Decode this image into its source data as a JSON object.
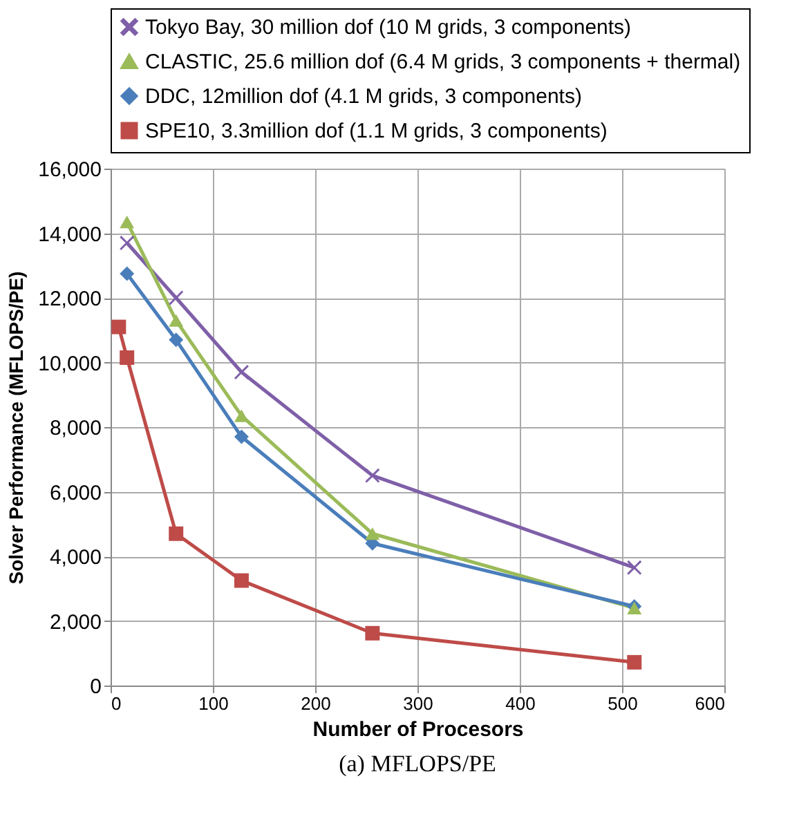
{
  "chart_data": {
    "type": "line",
    "xlabel": "Number of Procesors",
    "ylabel": "Solver Performance (MFLOPS/PE)",
    "annotations": [
      "(a) MFLOPS/PE"
    ],
    "xlim": [
      0,
      600
    ],
    "xticks": [
      0,
      100,
      200,
      300,
      400,
      500,
      600
    ],
    "ylim": [
      0,
      16000
    ],
    "yticks": [
      {
        "value": 0,
        "label": "0"
      },
      {
        "value": 2000,
        "label": "2,000"
      },
      {
        "value": 4000,
        "label": "4,000"
      },
      {
        "value": 6000,
        "label": "6,000"
      },
      {
        "value": 8000,
        "label": "8,000"
      },
      {
        "value": 10000,
        "label": "10,000"
      },
      {
        "value": 12000,
        "label": "12,000"
      },
      {
        "value": 14000,
        "label": "14,000"
      },
      {
        "value": 16000,
        "label": "16,000"
      }
    ],
    "grid": true,
    "legend": "top",
    "line_style": "solid",
    "series": [
      {
        "name": "Tokyo Bay, 30 million dof (10 M grids, 3 components)",
        "color": "#7f5fa8",
        "marker": "cross",
        "x": [
          16,
          64,
          128,
          256,
          512
        ],
        "values": [
          13700,
          12000,
          9700,
          6500,
          3650
        ]
      },
      {
        "name": "CLASTIC, 25.6 million dof (6.4 M grids, 3 components + thermal)",
        "color": "#9bbb59",
        "marker": "triangle",
        "x": [
          16,
          64,
          128,
          256,
          512
        ],
        "values": [
          14350,
          11300,
          8350,
          4700,
          2400
        ]
      },
      {
        "name": "DDC, 12million dof (4.1 M grids, 3 components)",
        "color": "#4a7ebb",
        "marker": "diamond",
        "x": [
          16,
          64,
          128,
          256,
          512
        ],
        "values": [
          12750,
          10700,
          7700,
          4400,
          2450
        ]
      },
      {
        "name": "SPE10, 3.3million dof (1.1 M grids, 3 components)",
        "color": "#be4b48",
        "marker": "square",
        "x": [
          8,
          16,
          64,
          128,
          256,
          512
        ],
        "values": [
          11100,
          10150,
          4700,
          3250,
          1620,
          720
        ]
      }
    ]
  }
}
